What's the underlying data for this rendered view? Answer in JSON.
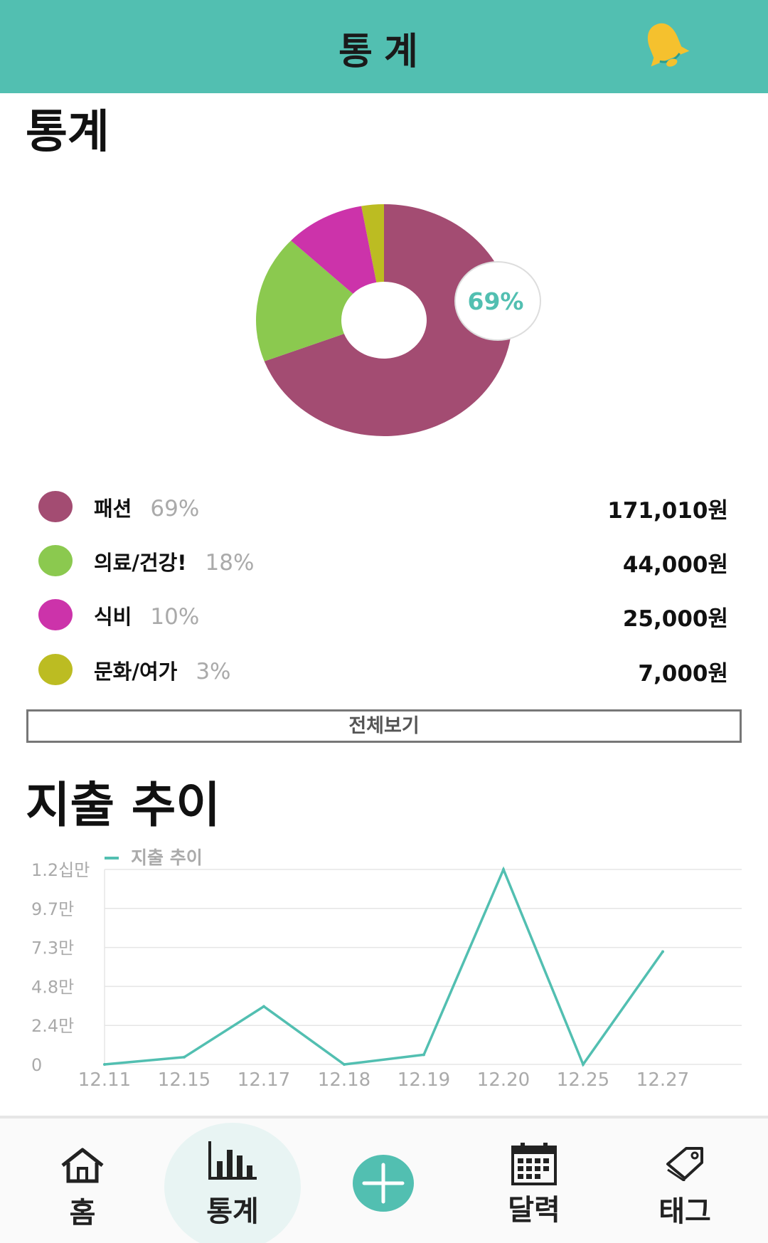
{
  "header": {
    "title": "통계",
    "bell_icon": "bell-icon",
    "bell_color": "#f5c12e",
    "background": "#52bfb1"
  },
  "stats": {
    "title": "통계",
    "donut_highlight_label": "69%",
    "view_all_label": "전체보기"
  },
  "categories": [
    {
      "name": "패션",
      "percent": "69%",
      "amount": "171,010원",
      "color": "#a34c72"
    },
    {
      "name": "의료/건강!",
      "percent": "18%",
      "amount": "44,000원",
      "color": "#8bc94f"
    },
    {
      "name": "식비",
      "percent": "10%",
      "amount": "25,000원",
      "color": "#cc33aa"
    },
    {
      "name": "문화/여가",
      "percent": "3%",
      "amount": "7,000원",
      "color": "#bcbc22"
    }
  ],
  "trend": {
    "title": "지출 추이"
  },
  "chart_data": [
    {
      "type": "pie",
      "labels": [
        "패션",
        "의료/건강!",
        "식비",
        "문화/여가"
      ],
      "values": [
        171010,
        44000,
        25000,
        7000
      ],
      "percents": [
        69,
        18,
        10,
        3
      ],
      "colors": [
        "#a34c72",
        "#8bc94f",
        "#cc33aa",
        "#bcbc22"
      ]
    },
    {
      "type": "line",
      "categories": [
        "12.11",
        "12.15",
        "12.17",
        "12.18",
        "12.19",
        "12.20",
        "12.25",
        "12.27"
      ],
      "series": [
        {
          "name": "지출 추이",
          "values": [
            0,
            4500,
            36000,
            0,
            6000,
            121000,
            0,
            70000
          ],
          "color": "#52bfb1"
        }
      ],
      "ylim": [
        0,
        121000
      ],
      "ytick_labels": [
        "0",
        "2.4만",
        "4.8만",
        "7.3만",
        "9.7만",
        "1.2십만"
      ],
      "grid": true,
      "legend": "top-left"
    }
  ],
  "nav": {
    "items": [
      {
        "label": "홈",
        "icon": "home-icon"
      },
      {
        "label": "통계",
        "icon": "bar-chart-icon",
        "active": true
      },
      {
        "label": "",
        "icon": "plus-icon"
      },
      {
        "label": "달력",
        "icon": "calendar-icon"
      },
      {
        "label": "태그",
        "icon": "tag-icon"
      }
    ]
  }
}
